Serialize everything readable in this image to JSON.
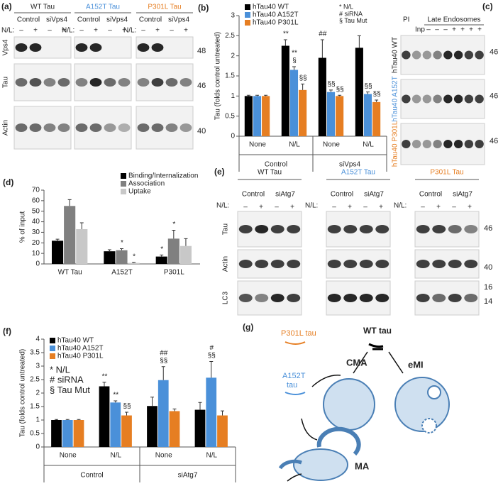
{
  "chart_data": [
    {
      "type": "bar",
      "label": "(b)",
      "ylabel": "Tau (folds control untreated)",
      "categories": [
        "None",
        "N/L",
        "None",
        "N/L"
      ],
      "groups": [
        "Control",
        "siVps4"
      ],
      "ylim": [
        0,
        3
      ],
      "yticks": [
        0,
        0.5,
        1,
        1.5,
        2,
        2.5,
        3
      ],
      "legend": "top-left",
      "notes": [
        "* N/L",
        "# siRNA",
        "§ Tau Mut"
      ],
      "series": [
        {
          "name": "hTau40 WT",
          "color": "#000000",
          "values": [
            1,
            2.25,
            1.95,
            2.2
          ],
          "errors": [
            0.02,
            0.15,
            0.45,
            0.3
          ],
          "markers": [
            null,
            [
              "**"
            ],
            [
              "##"
            ],
            null
          ]
        },
        {
          "name": "hTau40 A152T",
          "color": "#4a90d9",
          "values": [
            1,
            1.65,
            1.1,
            1.05
          ],
          "errors": [
            0.02,
            0.08,
            0.05,
            0.05
          ],
          "markers": [
            null,
            [
              "**",
              "§"
            ],
            [
              "§§"
            ],
            [
              "§§"
            ]
          ]
        },
        {
          "name": "hTau40 P301L",
          "color": "#e67e22",
          "values": [
            1,
            1.15,
            1.0,
            0.85
          ],
          "errors": [
            0.02,
            0.15,
            0.02,
            0.05
          ],
          "markers": [
            null,
            [
              "§§"
            ],
            [
              "§§"
            ],
            [
              "§§"
            ]
          ]
        }
      ]
    },
    {
      "type": "bar",
      "label": "(d)",
      "ylabel": "% of input",
      "categories": [
        "WT Tau",
        "A152T",
        "P301L"
      ],
      "ylim": [
        0,
        70
      ],
      "yticks": [
        0,
        10,
        20,
        30,
        40,
        50,
        60,
        70
      ],
      "legend": "top-right",
      "series": [
        {
          "name": "Binding/Internalization",
          "color": "#000000",
          "values": [
            22,
            12,
            7
          ],
          "errors": [
            1.5,
            1.5,
            1.5
          ],
          "markers": [
            null,
            null,
            [
              "*"
            ]
          ]
        },
        {
          "name": "Association",
          "color": "#808080",
          "values": [
            55,
            13,
            24
          ],
          "errors": [
            6,
            1.5,
            8
          ],
          "markers": [
            null,
            [
              "*"
            ],
            [
              "*"
            ]
          ]
        },
        {
          "name": "Uptake",
          "color": "#c8c8c8",
          "values": [
            33,
            1,
            17
          ],
          "errors": [
            6,
            0.5,
            7
          ],
          "markers": [
            null,
            [
              "*"
            ],
            null
          ]
        }
      ]
    },
    {
      "type": "bar",
      "label": "(f)",
      "ylabel": "Tau (folds control untreated)",
      "categories": [
        "None",
        "N/L",
        "None",
        "N/L"
      ],
      "groups": [
        "Control",
        "siAtg7"
      ],
      "ylim": [
        0,
        4
      ],
      "yticks": [
        0,
        0.5,
        1,
        1.5,
        2,
        2.5,
        3,
        3.5,
        4
      ],
      "legend": "top-left",
      "notes": [
        "* N/L",
        "# siRNA",
        "§ Tau Mut"
      ],
      "series": [
        {
          "name": "hTau40 WT",
          "color": "#000000",
          "values": [
            1,
            2.25,
            1.52,
            1.38
          ],
          "errors": [
            0.02,
            0.15,
            0.33,
            0.27
          ],
          "markers": [
            null,
            [
              "**"
            ],
            null,
            null
          ]
        },
        {
          "name": "hTau40 A152T",
          "color": "#4a90d9",
          "values": [
            1,
            1.65,
            2.48,
            2.57
          ],
          "errors": [
            0.02,
            0.06,
            0.5,
            0.6
          ],
          "markers": [
            null,
            [
              "**"
            ],
            [
              "##",
              "§§"
            ],
            [
              "#",
              "§§"
            ]
          ]
        },
        {
          "name": "hTau40 P301L",
          "color": "#e67e22",
          "values": [
            1,
            1.17,
            1.33,
            1.17
          ],
          "errors": [
            0.02,
            0.12,
            0.08,
            0.17
          ],
          "markers": [
            null,
            [
              "§§"
            ],
            null,
            null
          ]
        }
      ]
    }
  ],
  "panel_a": {
    "label": "(a)",
    "columns": [
      "WT Tau",
      "A152T Tau",
      "P301L Tau"
    ],
    "subheads": [
      "Control",
      "siVps4"
    ],
    "nl": "N/L:",
    "signs": [
      "–",
      "+",
      "–",
      "+"
    ],
    "rows": [
      "Vps4",
      "Tau",
      "Actin"
    ],
    "sizes": [
      "48",
      "46",
      "40"
    ]
  },
  "panel_c": {
    "label": "(c)",
    "pi": "PI",
    "inp": "Inp",
    "header": "Late Endosomes",
    "signs": [
      "–",
      "–",
      "–",
      "+",
      "+",
      "+",
      "+"
    ],
    "rows": [
      "hTau40 WT",
      "hTau40 A152T",
      "hTau40 P301L"
    ],
    "sizes": [
      "46",
      "46",
      "46"
    ]
  },
  "panel_e": {
    "label": "(e)",
    "columns": [
      "WT Tau",
      "A152T Tau",
      "P301L Tau"
    ],
    "subheads": [
      "Control",
      "siAtg7"
    ],
    "nl": "N/L:",
    "signs": [
      "–",
      "+",
      "–",
      "+"
    ],
    "rows": [
      "Tau",
      "Actin",
      "LC3"
    ],
    "sizes": [
      "46",
      "40",
      "16",
      "14"
    ]
  },
  "panel_g": {
    "label": "(g)",
    "p301l": "P301L tau",
    "wt": "WT tau",
    "cma": "CMA",
    "emi": "eMI",
    "a152t": [
      "A152T",
      "tau"
    ],
    "ma": "MA"
  }
}
